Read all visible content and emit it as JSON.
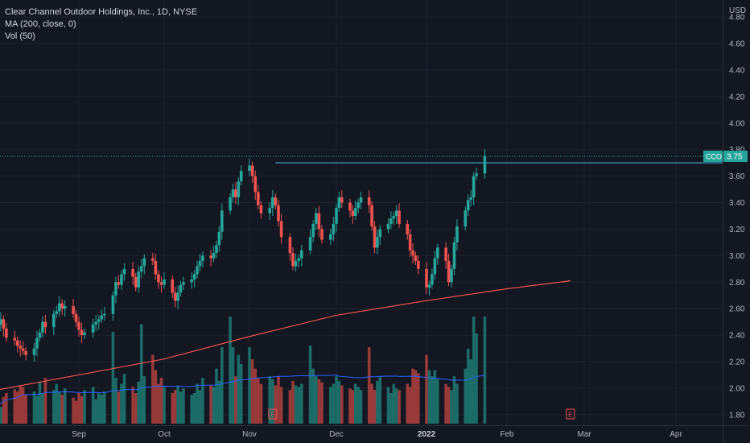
{
  "legend": {
    "title": "Clear Channel Outdoor Holdings, Inc., 1D, NYSE",
    "ma": "MA (200, close, 0)",
    "vol": "Vol (50)"
  },
  "colors": {
    "background": "#131722",
    "up": "#26a69a",
    "down": "#ef5350",
    "up_volume": "#1f7a72",
    "down_volume": "#b0413e",
    "ma": "#ef5350",
    "vol_ma": "#2962ff",
    "resistance": "#4fc3f7",
    "price_tag": "#26a69a",
    "earnings": "#ef5350"
  },
  "chart_data": {
    "type": "candlestick",
    "currency": "USD",
    "symbol": "CCO",
    "last_price": "3.75",
    "y_ticks": [
      "1.80",
      "2.00",
      "2.20",
      "2.40",
      "2.60",
      "2.80",
      "3.00",
      "3.20",
      "3.40",
      "3.60",
      "3.80",
      "4.00",
      "4.20",
      "4.40",
      "4.60",
      "4.80"
    ],
    "ylim": [
      1.72,
      4.88
    ],
    "x_ticks": [
      {
        "label": "Sep",
        "date": "2021-09-01"
      },
      {
        "label": "Oct",
        "date": "2021-10-01"
      },
      {
        "label": "Nov",
        "date": "2021-11-01"
      },
      {
        "label": "Dec",
        "date": "2021-12-01"
      },
      {
        "label": "2022",
        "date": "2022-01-03",
        "bold": true
      },
      {
        "label": "Feb",
        "date": "2022-02-01"
      },
      {
        "label": "Mar",
        "date": "2022-03-01"
      },
      {
        "label": "Apr",
        "date": "2022-04-01"
      }
    ],
    "earnings_markers": [
      {
        "label": "E",
        "date": "2021-11-09"
      },
      {
        "label": "E",
        "date": "2022-02-24"
      }
    ],
    "resistance_level": 3.7,
    "resistance_start": "2021-11-10",
    "closes": [
      2.55,
      2.48,
      2.52,
      2.45,
      2.38,
      2.36,
      2.32,
      2.3,
      2.28,
      2.25,
      2.3,
      2.38,
      2.42,
      2.5,
      2.46,
      2.56,
      2.58,
      2.64,
      2.6,
      2.62,
      2.56,
      2.5,
      2.44,
      2.4,
      2.42,
      2.48,
      2.5,
      2.52,
      2.55,
      2.56,
      2.7,
      2.8,
      2.78,
      2.86,
      2.9,
      2.84,
      2.76,
      2.88,
      2.92,
      2.98,
      2.96,
      2.86,
      2.8,
      2.78,
      2.82,
      2.72,
      2.66,
      2.72,
      2.78,
      2.8,
      2.82,
      2.86,
      2.92,
      2.96,
      3.0,
      2.98,
      3.02,
      3.08,
      3.18,
      3.34,
      3.44,
      3.5,
      3.44,
      3.56,
      3.64,
      3.68,
      3.6,
      3.48,
      3.38,
      3.32,
      3.36,
      3.44,
      3.38,
      3.26,
      3.14,
      3.02,
      2.92,
      2.96,
      2.98,
      3.04,
      3.14,
      3.24,
      3.32,
      3.2,
      3.12,
      3.16,
      3.24,
      3.36,
      3.44,
      3.4,
      3.34,
      3.3,
      3.36,
      3.4,
      3.44,
      3.38,
      3.22,
      3.06,
      3.14,
      3.2,
      3.24,
      3.28,
      3.3,
      3.34,
      3.24,
      3.16,
      3.04,
      3.0,
      2.96,
      2.9,
      2.76,
      2.78,
      2.86,
      2.98,
      3.06,
      2.96,
      2.8,
      2.9,
      3.1,
      3.22,
      3.34,
      3.42,
      3.44,
      3.6,
      3.62,
      3.75
    ],
    "ma200": [
      {
        "date": "2021-08-01",
        "value": 1.98
      },
      {
        "date": "2021-09-01",
        "value": 2.1
      },
      {
        "date": "2021-10-01",
        "value": 2.22
      },
      {
        "date": "2021-11-01",
        "value": 2.39
      },
      {
        "date": "2021-12-01",
        "value": 2.55
      },
      {
        "date": "2022-01-03",
        "value": 2.66
      },
      {
        "date": "2022-02-01",
        "value": 2.75
      },
      {
        "date": "2022-02-24",
        "value": 2.81
      }
    ],
    "volumes": [
      0.28,
      0.3,
      0.22,
      0.35,
      0.4,
      0.45,
      0.42,
      0.5,
      0.48,
      0.38,
      0.42,
      0.36,
      0.55,
      0.4,
      0.6,
      0.44,
      0.52,
      0.42,
      0.38,
      0.46,
      0.34,
      0.3,
      0.4,
      0.36,
      0.44,
      0.48,
      0.32,
      0.4,
      0.38,
      0.42,
      1.2,
      0.6,
      0.42,
      0.52,
      0.65,
      0.48,
      0.4,
      0.55,
      1.3,
      0.62,
      0.9,
      0.7,
      0.52,
      0.6,
      0.48,
      0.4,
      0.44,
      0.5,
      0.42,
      0.46,
      0.38,
      0.4,
      0.52,
      0.44,
      0.6,
      0.5,
      0.48,
      0.72,
      0.56,
      1.0,
      1.4,
      1.0,
      0.62,
      0.9,
      0.78,
      1.0,
      0.84,
      0.72,
      0.6,
      0.52,
      0.62,
      0.58,
      0.5,
      0.62,
      0.48,
      0.44,
      0.56,
      0.5,
      0.48,
      0.52,
      1.02,
      0.72,
      0.62,
      0.58,
      0.54,
      0.48,
      0.52,
      0.62,
      0.56,
      0.5,
      0.46,
      0.44,
      0.52,
      0.48,
      0.44,
      1.0,
      0.52,
      0.44,
      0.56,
      0.62,
      0.48,
      0.4,
      0.52,
      0.46,
      0.44,
      0.52,
      0.48,
      0.72,
      0.7,
      0.66,
      0.9,
      0.7,
      0.62,
      0.7,
      0.58,
      0.52,
      0.48,
      0.44,
      0.62,
      0.52,
      0.72,
      0.98,
      0.84,
      1.4,
      1.18,
      1.4
    ]
  }
}
